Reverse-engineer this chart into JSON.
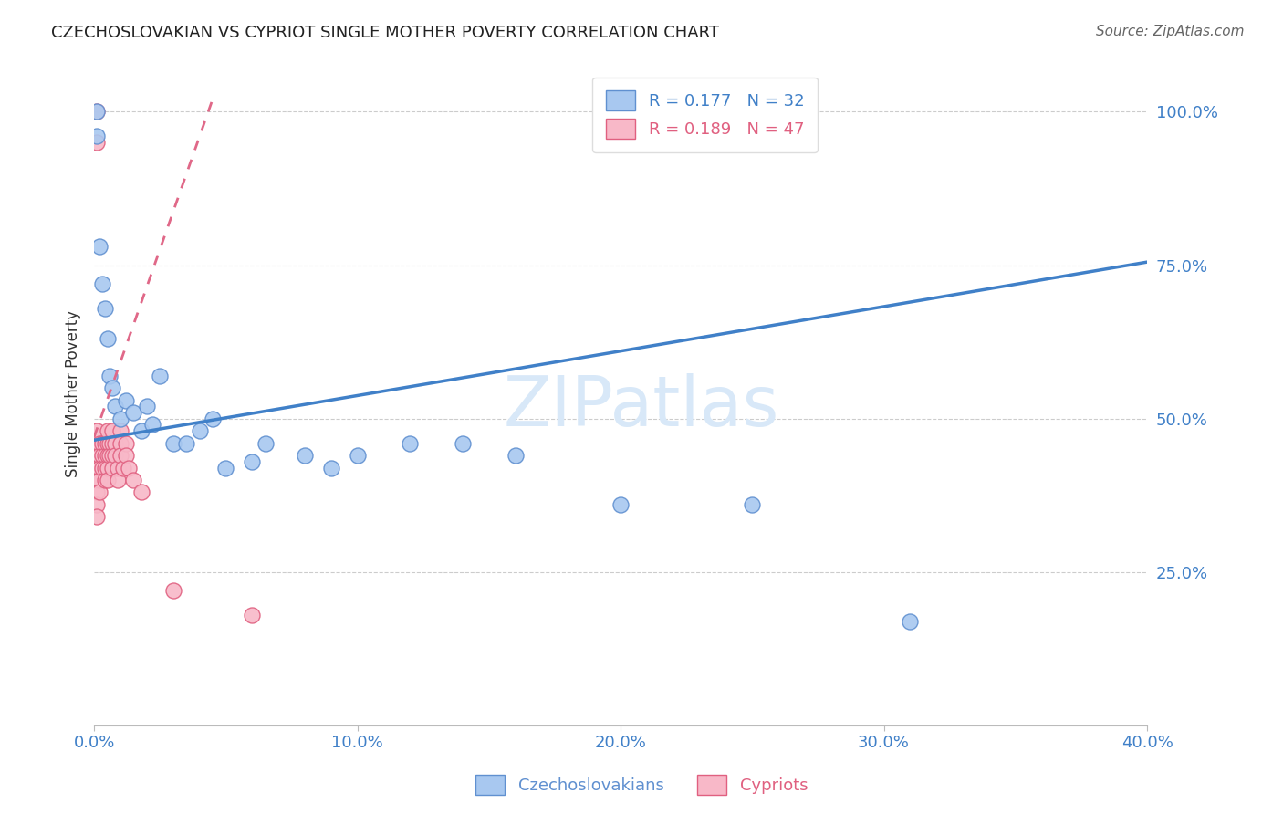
{
  "title": "CZECHOSLOVAKIAN VS CYPRIOT SINGLE MOTHER POVERTY CORRELATION CHART",
  "source": "Source: ZipAtlas.com",
  "ylabel": "Single Mother Poverty",
  "xlim": [
    0.0,
    0.4
  ],
  "ylim": [
    0.0,
    1.08
  ],
  "yticks": [
    0.25,
    0.5,
    0.75,
    1.0
  ],
  "xticks": [
    0.0,
    0.1,
    0.2,
    0.3,
    0.4
  ],
  "ytick_labels": [
    "25.0%",
    "50.0%",
    "75.0%",
    "100.0%"
  ],
  "xtick_labels": [
    "0.0%",
    "10.0%",
    "20.0%",
    "30.0%",
    "40.0%"
  ],
  "blue_R": 0.177,
  "blue_N": 32,
  "pink_R": 0.189,
  "pink_N": 47,
  "blue_color": "#A8C8F0",
  "pink_color": "#F8B8C8",
  "blue_edge_color": "#6090D0",
  "pink_edge_color": "#E06080",
  "blue_line_color": "#4080C8",
  "pink_line_color": "#E06888",
  "legend_blue_label": "Czechoslovakians",
  "legend_pink_label": "Cypriots",
  "blue_line_x0": 0.0,
  "blue_line_y0": 0.465,
  "blue_line_x1": 0.4,
  "blue_line_y1": 0.755,
  "pink_line_x0": 0.0,
  "pink_line_y0": 0.47,
  "pink_line_x1": 0.045,
  "pink_line_y1": 1.02,
  "blue_scatter_x": [
    0.001,
    0.001,
    0.002,
    0.003,
    0.004,
    0.005,
    0.006,
    0.007,
    0.008,
    0.01,
    0.012,
    0.015,
    0.018,
    0.02,
    0.022,
    0.025,
    0.03,
    0.035,
    0.04,
    0.045,
    0.05,
    0.06,
    0.065,
    0.08,
    0.09,
    0.1,
    0.12,
    0.14,
    0.16,
    0.2,
    0.25,
    0.31
  ],
  "blue_scatter_y": [
    1.0,
    0.96,
    0.78,
    0.72,
    0.68,
    0.63,
    0.57,
    0.55,
    0.52,
    0.5,
    0.53,
    0.51,
    0.48,
    0.52,
    0.49,
    0.57,
    0.46,
    0.46,
    0.48,
    0.5,
    0.42,
    0.43,
    0.46,
    0.44,
    0.42,
    0.44,
    0.46,
    0.46,
    0.44,
    0.36,
    0.36,
    0.17
  ],
  "pink_scatter_x": [
    0.001,
    0.001,
    0.001,
    0.001,
    0.001,
    0.001,
    0.001,
    0.001,
    0.001,
    0.002,
    0.002,
    0.002,
    0.002,
    0.002,
    0.003,
    0.003,
    0.003,
    0.004,
    0.004,
    0.004,
    0.004,
    0.005,
    0.005,
    0.005,
    0.005,
    0.005,
    0.006,
    0.006,
    0.007,
    0.007,
    0.007,
    0.007,
    0.008,
    0.008,
    0.009,
    0.009,
    0.01,
    0.01,
    0.01,
    0.011,
    0.012,
    0.012,
    0.013,
    0.015,
    0.018,
    0.03,
    0.06
  ],
  "pink_scatter_y": [
    1.0,
    0.95,
    0.48,
    0.45,
    0.42,
    0.4,
    0.38,
    0.36,
    0.34,
    0.46,
    0.44,
    0.42,
    0.4,
    0.38,
    0.46,
    0.44,
    0.42,
    0.46,
    0.44,
    0.42,
    0.4,
    0.48,
    0.46,
    0.44,
    0.42,
    0.4,
    0.46,
    0.44,
    0.48,
    0.46,
    0.44,
    0.42,
    0.46,
    0.44,
    0.42,
    0.4,
    0.48,
    0.46,
    0.44,
    0.42,
    0.46,
    0.44,
    0.42,
    0.4,
    0.38,
    0.22,
    0.18
  ],
  "background_color": "#FFFFFF",
  "watermark_text": "ZIPatlas",
  "watermark_color": "#D8E8F8",
  "grid_color": "#CCCCCC"
}
